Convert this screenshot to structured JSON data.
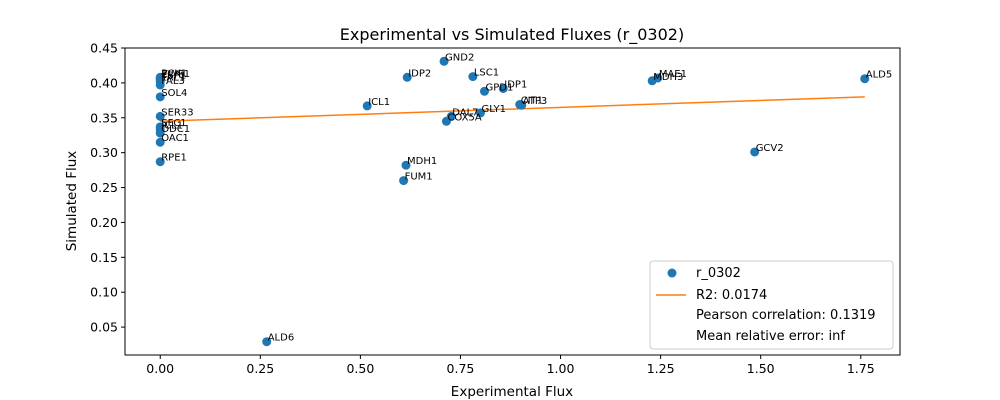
{
  "chart_data": {
    "type": "scatter",
    "title": "Experimental vs Simulated Fluxes (r_0302)",
    "xlabel": "Experimental Flux",
    "ylabel": "Simulated Flux",
    "xlim": [
      -0.088,
      1.848
    ],
    "ylim": [
      0.01,
      0.45
    ],
    "xticks": [
      "0.00",
      "0.25",
      "0.50",
      "0.75",
      "1.00",
      "1.25",
      "1.50",
      "1.75"
    ],
    "xtick_values": [
      0,
      0.25,
      0.5,
      0.75,
      1.0,
      1.25,
      1.5,
      1.75
    ],
    "yticks": [
      "0.05",
      "0.10",
      "0.15",
      "0.20",
      "0.25",
      "0.30",
      "0.35",
      "0.40",
      "0.45"
    ],
    "ytick_values": [
      0.05,
      0.1,
      0.15,
      0.2,
      0.25,
      0.3,
      0.35,
      0.4,
      0.45
    ],
    "series": [
      {
        "name": "r_0302",
        "color": "#1f77b4",
        "points": [
          {
            "label": "PCK1",
            "x": 0.0,
            "y": 0.408
          },
          {
            "label": "ZWF1",
            "x": 0.0,
            "y": 0.407
          },
          {
            "label": "FBP1",
            "x": 0.0,
            "y": 0.405
          },
          {
            "label": "TAL1",
            "x": 0.0,
            "y": 0.402
          },
          {
            "label": "FAL3",
            "x": 0.0,
            "y": 0.397
          },
          {
            "label": "SOL4",
            "x": 0.0,
            "y": 0.38
          },
          {
            "label": "SER33",
            "x": 0.0,
            "y": 0.352
          },
          {
            "label": "SFC1",
            "x": 0.0,
            "y": 0.337
          },
          {
            "label": "ICL1",
            "x": 0.0,
            "y": 0.333
          },
          {
            "label": "ODC1",
            "x": 0.0,
            "y": 0.328
          },
          {
            "label": "OAC1",
            "x": 0.0,
            "y": 0.315
          },
          {
            "label": "RPE1",
            "x": 0.0,
            "y": 0.287
          },
          {
            "label": "ALD6",
            "x": 0.266,
            "y": 0.029
          },
          {
            "label": "ICL1",
            "x": 0.517,
            "y": 0.367
          },
          {
            "label": "FUM1",
            "x": 0.608,
            "y": 0.26
          },
          {
            "label": "MDH1",
            "x": 0.614,
            "y": 0.282
          },
          {
            "label": "IDP2",
            "x": 0.617,
            "y": 0.408
          },
          {
            "label": "GND2",
            "x": 0.709,
            "y": 0.431
          },
          {
            "label": "COX5A",
            "x": 0.715,
            "y": 0.345
          },
          {
            "label": "DAL7",
            "x": 0.727,
            "y": 0.352
          },
          {
            "label": "LSC1",
            "x": 0.781,
            "y": 0.409
          },
          {
            "label": "GLY1",
            "x": 0.8,
            "y": 0.357
          },
          {
            "label": "GPD1",
            "x": 0.81,
            "y": 0.388
          },
          {
            "label": "IDP1",
            "x": 0.857,
            "y": 0.392
          },
          {
            "label": "CIT1",
            "x": 0.898,
            "y": 0.369
          },
          {
            "label": "ATP3",
            "x": 0.903,
            "y": 0.368
          },
          {
            "label": "MDH3",
            "x": 1.229,
            "y": 0.403
          },
          {
            "label": "MAE1",
            "x": 1.243,
            "y": 0.407
          },
          {
            "label": "GCV2",
            "x": 1.485,
            "y": 0.301
          },
          {
            "label": "ALD5",
            "x": 1.76,
            "y": 0.406
          }
        ]
      }
    ],
    "fit_line": {
      "name": "R2: 0.0174",
      "color": "#ff7f0e",
      "x": [
        0.0,
        1.76
      ],
      "y": [
        0.345,
        0.38
      ]
    },
    "legend": {
      "position": "lower-right",
      "entries": [
        {
          "kind": "marker",
          "text": "r_0302",
          "color": "#1f77b4"
        },
        {
          "kind": "line",
          "text": "R2: 0.0174",
          "color": "#ff7f0e"
        },
        {
          "kind": "none",
          "text": "Pearson correlation: 0.1319"
        },
        {
          "kind": "none",
          "text": "Mean relative error: inf"
        }
      ]
    }
  }
}
